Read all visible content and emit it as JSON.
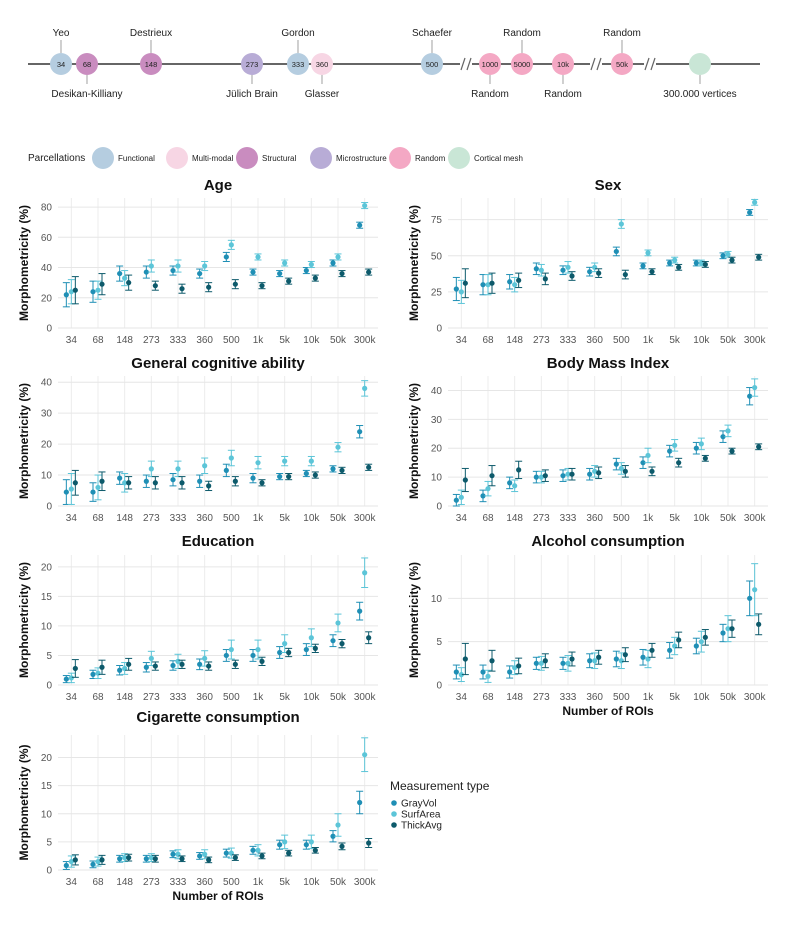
{
  "timeline": {
    "nodes": [
      {
        "label": "34",
        "color": "#b5cde0"
      },
      {
        "label": "68",
        "color": "#c98cbf"
      },
      {
        "label": "148",
        "color": "#c98cbf"
      },
      {
        "label": "273",
        "color": "#b8acd6"
      },
      {
        "label": "333",
        "color": "#b5cde0"
      },
      {
        "label": "360",
        "color": "#f7d6e4"
      },
      {
        "label": "500",
        "color": "#b5cde0"
      },
      {
        "label": "1000",
        "color": "#f4a8c4"
      },
      {
        "label": "5000",
        "color": "#f4a8c4"
      },
      {
        "label": "10k",
        "color": "#f4a8c4"
      },
      {
        "label": "50k",
        "color": "#f4a8c4"
      },
      {
        "label": "",
        "color": "#c9e6d6"
      }
    ],
    "top_labels": [
      "Yeo",
      "Destrieux",
      "Gordon",
      "Schaefer",
      "Random",
      "Random"
    ],
    "bottom_labels": [
      "Desikan-Killiany",
      "Jülich Brain",
      "Glasser",
      "Random",
      "Random",
      "300.000 vertices"
    ]
  },
  "parcellation_legend": {
    "title": "Parcellations",
    "items": [
      {
        "label": "Functional",
        "color": "#b5cde0"
      },
      {
        "label": "Multi-modal",
        "color": "#f7d6e4"
      },
      {
        "label": "Structural",
        "color": "#c98cbf"
      },
      {
        "label": "Microstructure",
        "color": "#b8acd6"
      },
      {
        "label": "Random",
        "color": "#f4a8c4"
      },
      {
        "label": "Cortical mesh",
        "color": "#c9e6d6"
      }
    ]
  },
  "measure_legend": {
    "title": "Measurement type",
    "items": [
      {
        "label": "GrayVol",
        "color": "#1f8fb5"
      },
      {
        "label": "SurfArea",
        "color": "#5cc5d8"
      },
      {
        "label": "ThickAvg",
        "color": "#0d5a6b"
      }
    ]
  },
  "chart_data": {
    "type": "scatter",
    "categories": [
      "34",
      "68",
      "148",
      "273",
      "333",
      "360",
      "500",
      "1k",
      "5k",
      "10k",
      "50k",
      "300k"
    ],
    "series_colors": {
      "GrayVol": "#1f8fb5",
      "SurfArea": "#5cc5d8",
      "ThickAvg": "#0d5a6b"
    },
    "ylabel": "Morphometricity (%)",
    "xlabel": "Number of ROIs",
    "panels": [
      {
        "title": "Age",
        "yticks": [
          0,
          20,
          40,
          60,
          80
        ],
        "ylim": [
          0,
          86
        ],
        "show_xlabel": false,
        "series": [
          {
            "name": "GrayVol",
            "values": [
              22,
              24,
              36,
              37,
              38,
              36,
              47,
              37,
              36,
              38,
              43,
              68
            ],
            "errors": [
              8,
              7,
              5,
              4,
              3,
              3,
              3,
              2,
              2,
              2,
              2,
              2
            ]
          },
          {
            "name": "SurfArea",
            "values": [
              24,
              25,
              33,
              41,
              41,
              41,
              55,
              47,
              43,
              42,
              47,
              81
            ],
            "errors": [
              8,
              6,
              5,
              4,
              4,
              3,
              3,
              2,
              2,
              2,
              2,
              2
            ]
          },
          {
            "name": "ThickAvg",
            "values": [
              25,
              29,
              30,
              28,
              26,
              27,
              29,
              28,
              31,
              33,
              36,
              37
            ],
            "errors": [
              9,
              7,
              5,
              3,
              3,
              3,
              3,
              2,
              2,
              2,
              2,
              2
            ]
          }
        ]
      },
      {
        "title": "Sex",
        "yticks": [
          0,
          25,
          50,
          75
        ],
        "ylim": [
          0,
          90
        ],
        "show_xlabel": false,
        "series": [
          {
            "name": "GrayVol",
            "values": [
              27,
              30,
              32,
              41,
              40,
              39,
              53,
              43,
              45,
              45,
              50,
              80
            ],
            "errors": [
              8,
              7,
              5,
              4,
              3,
              3,
              3,
              2,
              2,
              2,
              2,
              2
            ]
          },
          {
            "name": "SurfArea",
            "values": [
              25,
              30,
              30,
              40,
              42,
              42,
              72,
              52,
              47,
              45,
              51,
              87
            ],
            "errors": [
              8,
              7,
              5,
              4,
              4,
              3,
              3,
              2,
              2,
              2,
              2,
              2
            ]
          },
          {
            "name": "ThickAvg",
            "values": [
              31,
              31,
              33,
              34,
              36,
              38,
              37,
              39,
              42,
              44,
              47,
              49
            ],
            "errors": [
              10,
              7,
              5,
              4,
              3,
              3,
              3,
              2,
              2,
              2,
              2,
              2
            ]
          }
        ]
      },
      {
        "title": "General cognitive ability",
        "yticks": [
          0,
          10,
          20,
          30,
          40
        ],
        "ylim": [
          0,
          42
        ],
        "show_xlabel": false,
        "series": [
          {
            "name": "GrayVol",
            "values": [
              4.5,
              4.5,
              9,
              8,
              8.5,
              8,
              11.5,
              9,
              9.5,
              10.5,
              12,
              24
            ],
            "errors": [
              4,
              3,
              2,
              2,
              2,
              2,
              2,
              1.5,
              1,
              1,
              1,
              2
            ]
          },
          {
            "name": "SurfArea",
            "values": [
              5.5,
              6,
              7.5,
              12,
              12,
              13,
              15.5,
              14,
              14.5,
              14.5,
              19,
              38
            ],
            "errors": [
              5,
              4,
              3,
              2.5,
              2.5,
              2.5,
              2.5,
              2,
              1.5,
              1.5,
              1.5,
              2.5
            ]
          },
          {
            "name": "ThickAvg",
            "values": [
              7.5,
              8,
              7.5,
              7.5,
              7.5,
              6.5,
              8,
              7.5,
              9.5,
              10,
              11.5,
              12.5
            ],
            "errors": [
              4,
              3,
              2,
              2,
              2,
              1.5,
              1.5,
              1,
              1,
              1,
              1,
              1
            ]
          }
        ]
      },
      {
        "title": "Body Mass Index",
        "yticks": [
          0,
          10,
          20,
          30,
          40
        ],
        "ylim": [
          0,
          45
        ],
        "show_xlabel": false,
        "series": [
          {
            "name": "GrayVol",
            "values": [
              2,
              3.5,
              8,
              10,
              10.5,
              11,
              14.5,
              15,
              19,
              20,
              24,
              38
            ],
            "errors": [
              2,
              2,
              2,
              2,
              2,
              2,
              2,
              2,
              2,
              2,
              2,
              3
            ]
          },
          {
            "name": "SurfArea",
            "values": [
              3,
              6,
              7,
              10,
              11,
              12,
              13,
              17.5,
              21,
              21.5,
              26,
              41
            ],
            "errors": [
              2.5,
              2.5,
              2,
              2,
              2,
              2,
              2,
              2.5,
              2,
              2,
              2,
              3
            ]
          },
          {
            "name": "ThickAvg",
            "values": [
              9,
              10.5,
              12.5,
              10.5,
              11,
              11.5,
              12,
              12,
              15,
              16.5,
              19,
              20.5
            ],
            "errors": [
              4,
              3.5,
              3,
              2,
              2,
              2,
              2,
              1.5,
              1.5,
              1,
              1,
              1
            ]
          }
        ]
      },
      {
        "title": "Education",
        "yticks": [
          0,
          5,
          10,
          15,
          20
        ],
        "ylim": [
          0,
          22
        ],
        "show_xlabel": false,
        "series": [
          {
            "name": "GrayVol",
            "values": [
              1,
              1.8,
              2.5,
              3,
              3.3,
              3.5,
              5,
              5,
              5.5,
              6,
              7.5,
              12.5
            ],
            "errors": [
              0.6,
              0.7,
              0.8,
              0.8,
              0.8,
              0.9,
              1,
              1,
              1,
              1,
              1,
              1.5
            ]
          },
          {
            "name": "SurfArea",
            "values": [
              1.2,
              2,
              2.8,
              4.5,
              4,
              4.5,
              6,
              6,
              7,
              8,
              10.5,
              19
            ],
            "errors": [
              0.8,
              0.9,
              1,
              1.2,
              1.2,
              1.3,
              1.6,
              1.6,
              1.5,
              1.5,
              1.5,
              2.5
            ]
          },
          {
            "name": "ThickAvg",
            "values": [
              2.8,
              3,
              3.5,
              3.2,
              3.5,
              3.2,
              3.5,
              4,
              5.5,
              6.2,
              7,
              8
            ],
            "errors": [
              1.5,
              1.2,
              1,
              0.7,
              0.7,
              0.7,
              0.7,
              0.7,
              0.7,
              0.7,
              0.7,
              1
            ]
          }
        ]
      },
      {
        "title": "Alcohol consumption",
        "yticks": [
          0,
          5,
          10
        ],
        "ylim": [
          0,
          15
        ],
        "show_xlabel": true,
        "series": [
          {
            "name": "GrayVol",
            "values": [
              1.5,
              1.5,
              1.5,
              2.5,
              2.5,
              2.8,
              3,
              3.2,
              4,
              4.5,
              6,
              10
            ],
            "errors": [
              0.8,
              0.8,
              0.7,
              0.7,
              0.7,
              0.8,
              0.9,
              0.9,
              0.9,
              0.9,
              1,
              2
            ]
          },
          {
            "name": "SurfArea",
            "values": [
              1.2,
              1,
              2,
              2.5,
              2.5,
              2.8,
              2.8,
              3,
              4.5,
              5,
              6.5,
              11
            ],
            "errors": [
              0.8,
              0.7,
              0.8,
              0.8,
              0.9,
              0.9,
              0.9,
              1,
              1,
              1.2,
              1.5,
              3
            ]
          },
          {
            "name": "ThickAvg",
            "values": [
              3,
              2.8,
              2.2,
              2.8,
              3,
              3.2,
              3.5,
              4,
              5.2,
              5.5,
              6.5,
              7
            ],
            "errors": [
              1.8,
              1.2,
              0.9,
              0.8,
              0.8,
              0.8,
              0.8,
              0.8,
              0.9,
              0.9,
              1,
              1.2
            ]
          }
        ]
      },
      {
        "title": "Cigarette consumption",
        "yticks": [
          0,
          5,
          10,
          15,
          20
        ],
        "ylim": [
          0,
          24
        ],
        "show_xlabel": true,
        "series": [
          {
            "name": "GrayVol",
            "values": [
              0.8,
              1,
              2,
              2,
              2.8,
              2.5,
              3,
              3.5,
              4.5,
              4.5,
              6,
              12
            ],
            "errors": [
              0.7,
              0.6,
              0.6,
              0.6,
              0.6,
              0.6,
              0.7,
              0.7,
              0.8,
              0.8,
              1,
              2
            ]
          },
          {
            "name": "SurfArea",
            "values": [
              1.5,
              1.5,
              2.2,
              2.2,
              2.8,
              2.8,
              3,
              3.5,
              5,
              5,
              8,
              20.5
            ],
            "errors": [
              1,
              0.8,
              0.7,
              0.7,
              0.8,
              0.8,
              0.9,
              1,
              1.2,
              1.2,
              2,
              3
            ]
          },
          {
            "name": "ThickAvg",
            "values": [
              1.8,
              1.8,
              2.2,
              2,
              2,
              1.8,
              2.2,
              2.5,
              3,
              3.5,
              4.2,
              4.8
            ],
            "errors": [
              0.9,
              0.8,
              0.6,
              0.6,
              0.5,
              0.5,
              0.5,
              0.5,
              0.5,
              0.5,
              0.6,
              0.8
            ]
          }
        ]
      }
    ]
  }
}
